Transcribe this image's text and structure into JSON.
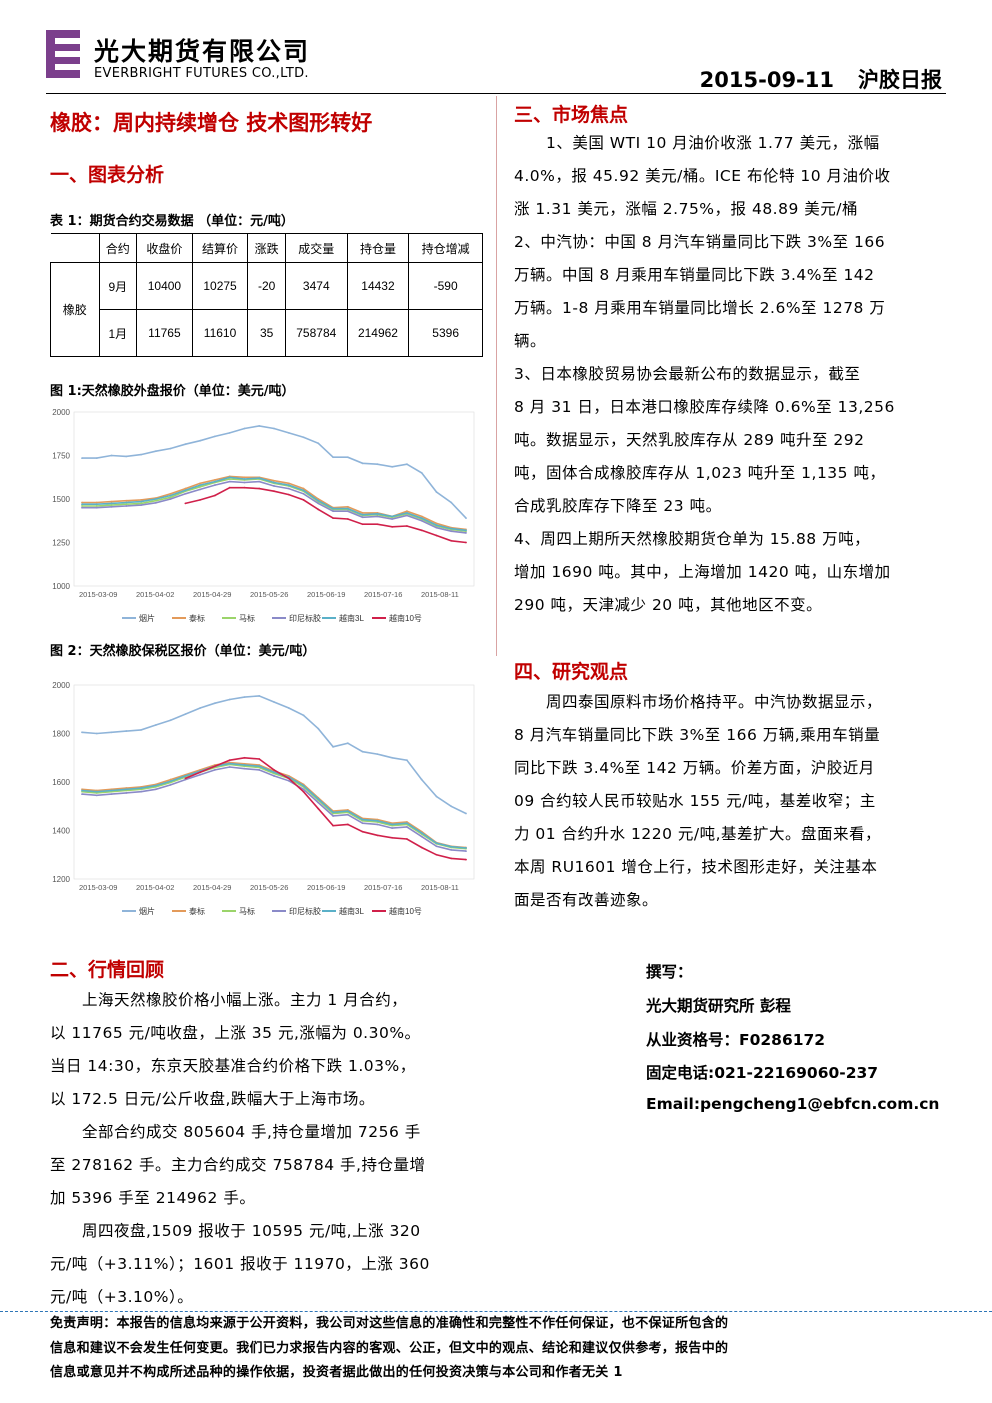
{
  "header": {
    "company_cn": "光大期货有限公司",
    "company_en": "EVERBRIGHT FUTURES CO.,LTD.",
    "date": "2015-09-11",
    "report_name": "沪胶日报"
  },
  "title": "橡胶：周内持续增仓 技术图形转好",
  "section1": {
    "heading": "一、图表分析",
    "table_caption": "表 1：期货合约交易数据 （单位：元/吨）",
    "table_headers": [
      "合约",
      "收盘价",
      "结算价",
      "涨跌",
      "成交量",
      "持仓量",
      "持仓增减"
    ],
    "table_product": "橡胶",
    "table_rows": [
      [
        "9月",
        "10400",
        "10275",
        "-20",
        "3474",
        "14432",
        "-590"
      ],
      [
        "1月",
        "11765",
        "11610",
        "35",
        "758784",
        "214962",
        "5396"
      ]
    ],
    "fig1_caption": "图 1:天然橡胶外盘报价（单位：美元/吨）",
    "fig2_caption": "图 2：天然橡胶保税区报价（单位：美元/吨）"
  },
  "chart_data": [
    {
      "type": "line",
      "title": "",
      "ylim": [
        1000,
        2000
      ],
      "yticks": [
        "2000",
        "1750",
        "1500",
        "1250",
        "1000"
      ],
      "xticks": [
        "2015-03-09",
        "2015-04-02",
        "2015-04-29",
        "2015-05-26",
        "2015-06-19",
        "2015-07-16",
        "2015-08-11"
      ],
      "x": [
        "2015-03-09",
        "2015-03-16",
        "2015-03-23",
        "2015-03-30",
        "2015-04-06",
        "2015-04-13",
        "2015-04-20",
        "2015-04-27",
        "2015-05-04",
        "2015-05-11",
        "2015-05-18",
        "2015-05-25",
        "2015-06-01",
        "2015-06-08",
        "2015-06-15",
        "2015-06-22",
        "2015-06-29",
        "2015-07-06",
        "2015-07-13",
        "2015-07-20",
        "2015-07-27",
        "2015-08-03",
        "2015-08-10",
        "2015-08-17",
        "2015-08-24",
        "2015-08-31",
        "2015-09-07"
      ],
      "series": [
        {
          "name": "烟片",
          "color": "#8fb4d9",
          "values": [
            1735,
            1735,
            1750,
            1745,
            1755,
            1775,
            1790,
            1815,
            1835,
            1860,
            1880,
            1905,
            1920,
            1905,
            1880,
            1855,
            1820,
            1740,
            1740,
            1705,
            1700,
            1685,
            1700,
            1650,
            1540,
            1480,
            1390
          ]
        },
        {
          "name": "泰标",
          "color": "#e39a5a",
          "values": [
            1480,
            1480,
            1485,
            1490,
            1495,
            1505,
            1530,
            1560,
            1590,
            1610,
            1630,
            1625,
            1625,
            1605,
            1590,
            1560,
            1500,
            1450,
            1455,
            1420,
            1420,
            1400,
            1430,
            1400,
            1360,
            1335,
            1325
          ]
        },
        {
          "name": "马标",
          "color": "#9bd46a",
          "values": [
            1460,
            1460,
            1465,
            1470,
            1475,
            1490,
            1510,
            1545,
            1570,
            1595,
            1615,
            1610,
            1615,
            1590,
            1575,
            1545,
            1485,
            1440,
            1440,
            1405,
            1410,
            1395,
            1415,
            1385,
            1345,
            1325,
            1315
          ]
        },
        {
          "name": "印尼标胶",
          "color": "#8a8ac8",
          "values": [
            1450,
            1450,
            1455,
            1460,
            1465,
            1478,
            1500,
            1530,
            1555,
            1580,
            1600,
            1595,
            1600,
            1575,
            1560,
            1530,
            1475,
            1430,
            1430,
            1395,
            1400,
            1385,
            1405,
            1375,
            1335,
            1315,
            1305
          ]
        },
        {
          "name": "越南3L",
          "color": "#5ab0c8",
          "values": [
            1470,
            1470,
            1475,
            1480,
            1485,
            1500,
            1520,
            1550,
            1580,
            1600,
            1625,
            1615,
            1620,
            1595,
            1580,
            1550,
            1490,
            1445,
            1445,
            1410,
            1415,
            1400,
            1420,
            1390,
            1350,
            1330,
            1320
          ]
        },
        {
          "name": "越南10号",
          "color": "#d0204a",
          "values": [
            null,
            null,
            null,
            null,
            null,
            null,
            null,
            1475,
            1495,
            1520,
            1565,
            1565,
            1560,
            1545,
            1525,
            1495,
            1440,
            1390,
            1385,
            1355,
            1355,
            1340,
            1345,
            1320,
            1290,
            1260,
            1250
          ]
        }
      ]
    },
    {
      "type": "line",
      "title": "",
      "ylim": [
        1200,
        2000
      ],
      "yticks": [
        "2000",
        "1800",
        "1600",
        "1400",
        "1200"
      ],
      "xticks": [
        "2015-03-09",
        "2015-04-02",
        "2015-04-29",
        "2015-05-26",
        "2015-06-19",
        "2015-07-16",
        "2015-08-11"
      ],
      "x": [
        "2015-03-09",
        "2015-03-16",
        "2015-03-23",
        "2015-03-30",
        "2015-04-06",
        "2015-04-13",
        "2015-04-20",
        "2015-04-27",
        "2015-05-04",
        "2015-05-11",
        "2015-05-18",
        "2015-05-25",
        "2015-06-01",
        "2015-06-08",
        "2015-06-15",
        "2015-06-22",
        "2015-06-29",
        "2015-07-06",
        "2015-07-13",
        "2015-07-20",
        "2015-07-27",
        "2015-08-03",
        "2015-08-10",
        "2015-08-17",
        "2015-08-24",
        "2015-08-31",
        "2015-09-07"
      ],
      "series": [
        {
          "name": "烟片",
          "color": "#8fb4d9",
          "values": [
            1805,
            1800,
            1805,
            1810,
            1815,
            1835,
            1855,
            1880,
            1905,
            1925,
            1940,
            1950,
            1955,
            1930,
            1905,
            1875,
            1820,
            1745,
            1760,
            1725,
            1715,
            1700,
            1690,
            1610,
            1540,
            1500,
            1470
          ]
        },
        {
          "name": "泰标",
          "color": "#e39a5a",
          "values": [
            1570,
            1565,
            1570,
            1575,
            1580,
            1590,
            1610,
            1630,
            1650,
            1670,
            1680,
            1675,
            1670,
            1645,
            1625,
            1590,
            1535,
            1480,
            1485,
            1450,
            1445,
            1430,
            1435,
            1395,
            1350,
            1335,
            1330
          ]
        },
        {
          "name": "马标",
          "color": "#9bd46a",
          "values": [
            1560,
            1555,
            1560,
            1565,
            1570,
            1580,
            1598,
            1620,
            1640,
            1660,
            1672,
            1665,
            1660,
            1635,
            1615,
            1580,
            1525,
            1470,
            1475,
            1440,
            1435,
            1420,
            1425,
            1385,
            1345,
            1330,
            1325
          ]
        },
        {
          "name": "印尼标胶",
          "color": "#8a8ac8",
          "values": [
            1550,
            1545,
            1550,
            1555,
            1560,
            1570,
            1588,
            1610,
            1630,
            1650,
            1662,
            1655,
            1650,
            1625,
            1605,
            1570,
            1515,
            1460,
            1465,
            1430,
            1425,
            1410,
            1415,
            1375,
            1335,
            1320,
            1315
          ]
        },
        {
          "name": "越南3L",
          "color": "#5ab0c8",
          "values": [
            1565,
            1560,
            1565,
            1570,
            1575,
            1585,
            1603,
            1625,
            1645,
            1665,
            1676,
            1670,
            1665,
            1640,
            1620,
            1585,
            1530,
            1475,
            1480,
            1445,
            1440,
            1425,
            1430,
            1390,
            1348,
            1333,
            1328
          ]
        },
        {
          "name": "越南10号",
          "color": "#d0204a",
          "values": [
            null,
            null,
            null,
            null,
            null,
            null,
            null,
            1615,
            1640,
            1665,
            1690,
            1700,
            1695,
            1650,
            1615,
            1560,
            1490,
            1420,
            1425,
            1395,
            1380,
            1370,
            1365,
            1330,
            1300,
            1285,
            1280
          ]
        }
      ]
    }
  ],
  "section2": {
    "heading": "二、行情回顾",
    "lines": [
      "　　上海天然橡胶价格小幅上涨。主力 1 月合约，",
      "以 11765 元/吨收盘，上涨 35 元,涨幅为 0.30%。",
      "当日 14:30，东京天胶基准合约价格下跌 1.03%，",
      "以 172.5 日元/公斤收盘,跌幅大于上海市场。",
      "　　全部合约成交 805604 手,持仓量增加 7256 手",
      "至 278162 手。主力合约成交 758784 手,持仓量增",
      "加 5396 手至 214962 手。",
      "　　周四夜盘,1509 报收于 10595 元/吨,上涨 320",
      "元/吨（+3.11%）；1601 报收于 11970，上涨 360",
      "元/吨（+3.10%）。"
    ]
  },
  "section3": {
    "heading": "三、市场焦点",
    "lines": [
      "　　1、美国 WTI 10 月油价收涨 1.77 美元，涨幅",
      "4.0%，报 45.92 美元/桶。ICE 布伦特 10 月油价收",
      "涨 1.31 美元，涨幅 2.75%，报 48.89 美元/桶",
      "2、中汽协：中国 8 月汽车销量同比下跌 3%至 166",
      "万辆。中国 8 月乘用车销量同比下跌 3.4%至 142",
      "万辆。1-8 月乘用车销量同比增长 2.6%至 1278 万",
      "辆。",
      "3、日本橡胶贸易协会最新公布的数据显示，截至",
      "8 月 31 日，日本港口橡胶库存续降 0.6%至 13,256",
      "吨。数据显示，天然乳胶库存从 289 吨升至 292",
      "吨，固体合成橡胶库存从 1,023 吨升至 1,135 吨，",
      "合成乳胶库存下降至 23 吨。",
      "4、周四上期所天然橡胶期货仓单为 15.88 万吨，",
      "增加 1690 吨。其中，上海增加 1420 吨，山东增加",
      "290 吨，天津减少 20 吨，其他地区不变。"
    ]
  },
  "section4": {
    "heading": "四、研究观点",
    "lines": [
      "　　周四泰国原料市场价格持平。中汽协数据显示，",
      "8 月汽车销量同比下跌 3%至 166 万辆,乘用车销量",
      "同比下跌 3.4%至 142 万辆。价差方面，沪胶近月",
      "09 合约较人民币较贴水 155 元/吨，基差收窄；主",
      "力 01 合约升水 1220 元/吨,基差扩大。盘面来看，",
      "本周 RU1601 增仓上行，技术图形走好，关注基本",
      "面是否有改善迹象。"
    ]
  },
  "author": {
    "label": "撰写：",
    "name": "光大期货研究所 彭程",
    "license": "从业资格号：F0286172",
    "phone": "固定电话:021-22169060-237",
    "email": "Email:pengcheng1@ebfcn.com.cn"
  },
  "footer": {
    "disclaimer_lines": [
      "免责声明：本报告的信息均来源于公开资料，我公司对这些信息的准确性和完整性不作任何保证，也不保证所包含的",
      "信息和建议不会发生任何变更。我们已力求报告内容的客观、公正，但文中的观点、结论和建议仅供参考，报告中的",
      "信息或意见并不构成所述品种的操作依据，投资者据此做出的任何投资决策与本公司和作者无关 1"
    ]
  },
  "colors": {
    "heading_red": "#c00000",
    "logo_purple": "#7b3f8c"
  }
}
